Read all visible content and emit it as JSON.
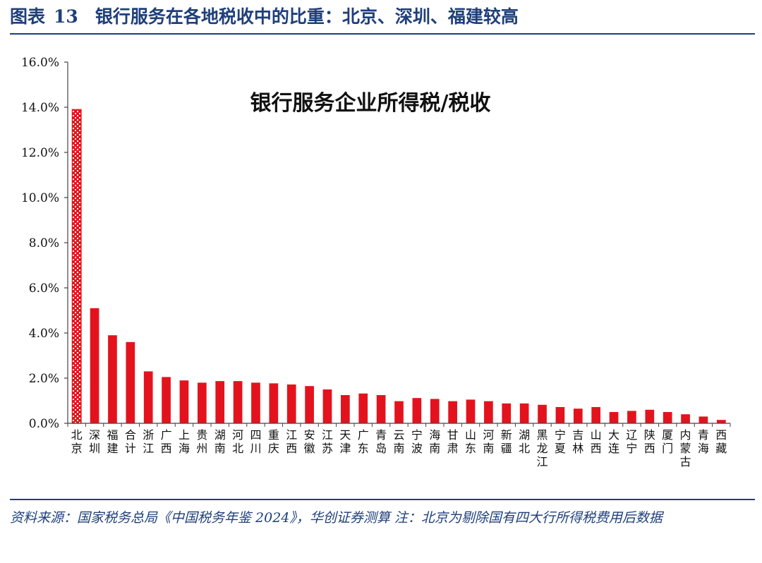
{
  "header": {
    "figure_label": "图表",
    "figure_number": "13",
    "title": "银行服务在各地税收中的比重：北京、深圳、福建较高"
  },
  "chart_data": {
    "type": "bar",
    "title": "银行服务企业所得税/税收",
    "xlabel": "",
    "ylabel": "",
    "ylim": [
      0,
      16
    ],
    "y_ticks": [
      "0.0%",
      "2.0%",
      "4.0%",
      "6.0%",
      "8.0%",
      "10.0%",
      "12.0%",
      "14.0%",
      "16.0%"
    ],
    "grid": false,
    "bar_color": "#e3131d",
    "highlight_color": "#e3131d",
    "highlight_category": "北京",
    "categories": [
      "北京",
      "深圳",
      "福建",
      "合计",
      "浙江",
      "广西",
      "上海",
      "贵州",
      "湖南",
      "河北",
      "四川",
      "重庆",
      "江西",
      "安徽",
      "江苏",
      "天津",
      "广东",
      "青岛",
      "云南",
      "宁波",
      "海南",
      "甘肃",
      "山东",
      "河南",
      "新疆",
      "湖北",
      "黑龙江",
      "宁夏",
      "吉林",
      "山西",
      "大连",
      "辽宁",
      "陕西",
      "厦门",
      "内蒙古",
      "青海",
      "西藏"
    ],
    "values": [
      13.9,
      5.1,
      3.9,
      3.6,
      2.3,
      2.05,
      1.9,
      1.8,
      1.87,
      1.87,
      1.8,
      1.77,
      1.72,
      1.65,
      1.5,
      1.25,
      1.32,
      1.25,
      0.98,
      1.12,
      1.08,
      0.98,
      1.05,
      0.98,
      0.88,
      0.88,
      0.82,
      0.72,
      0.65,
      0.72,
      0.5,
      0.55,
      0.6,
      0.5,
      0.4,
      0.3,
      0.15
    ]
  },
  "footer": {
    "note": "资料来源：国家税务总局《中国税务年鉴 2024》，华创证券测算  注：北京为剔除国有四大行所得税费用后数据"
  }
}
